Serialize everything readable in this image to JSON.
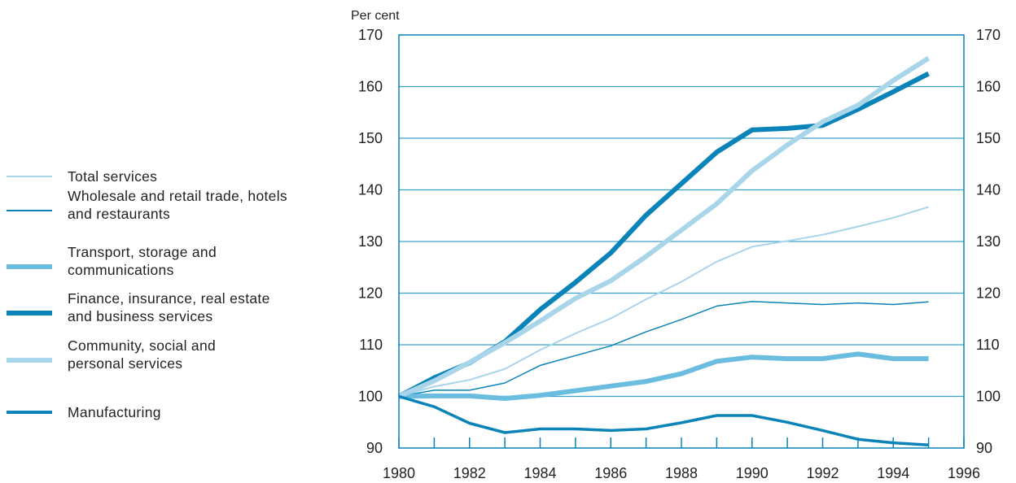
{
  "chart_data": {
    "type": "line",
    "ylabel": "Per cent",
    "xlim": [
      1980,
      1996
    ],
    "ylim": [
      90,
      170
    ],
    "xticks": [
      "1980",
      "1982",
      "1984",
      "1986",
      "1988",
      "1990",
      "1992",
      "1994",
      "1996"
    ],
    "yticks": [
      "90",
      "100",
      "110",
      "120",
      "130",
      "140",
      "150",
      "160",
      "170"
    ],
    "grid": true,
    "legend_position": "left",
    "x": [
      1980,
      1981,
      1982,
      1983,
      1984,
      1985,
      1986,
      1987,
      1988,
      1989,
      1990,
      1991,
      1992,
      1993,
      1994,
      1995
    ],
    "series": [
      {
        "name": "Total services",
        "color": "#a9d5ea",
        "width": 2,
        "values": [
          100,
          101.9,
          103.2,
          105.3,
          109,
          112.2,
          115.1,
          118.8,
          122.2,
          126.1,
          129,
          130.1,
          131.3,
          132.9,
          134.6,
          136.7
        ]
      },
      {
        "name": "Wholesale and retail trade, hotels and restaurants",
        "color": "#0a84b8",
        "width": 1.5,
        "values": [
          100,
          101.2,
          101.2,
          102.6,
          106,
          107.9,
          109.8,
          112.5,
          114.9,
          117.5,
          118.4,
          118.1,
          117.8,
          118.1,
          117.8,
          118.3
        ]
      },
      {
        "name": "Transport, storage and communications",
        "color": "#6bbde0",
        "width": 6,
        "values": [
          100,
          100.1,
          100.1,
          99.6,
          100.2,
          101.1,
          102,
          102.9,
          104.4,
          106.8,
          107.6,
          107.3,
          107.3,
          108.2,
          107.3,
          107.3
        ]
      },
      {
        "name": "Finance, insurance, real estate and business services",
        "color": "#0a84b8",
        "width": 6,
        "values": [
          100,
          103.6,
          106.5,
          110.6,
          116.8,
          122.1,
          127.8,
          135.1,
          141.2,
          147.3,
          151.6,
          151.9,
          152.5,
          155.6,
          159,
          162.5
        ]
      },
      {
        "name": "Community, social and personal services",
        "color": "#a9d5ea",
        "width": 6,
        "values": [
          100,
          103,
          106.6,
          110.4,
          114.6,
          119,
          122.4,
          127.1,
          132.2,
          137.3,
          143.7,
          148.7,
          153.2,
          156.4,
          161.2,
          165.5
        ]
      },
      {
        "name": "Manufacturing",
        "color": "#0a84b8",
        "width": 3.5,
        "values": [
          100,
          98,
          94.8,
          93,
          93.7,
          93.7,
          93.4,
          93.7,
          94.9,
          96.3,
          96.3,
          95,
          93.4,
          91.7,
          91,
          90.6
        ]
      }
    ]
  },
  "legend": {
    "items": [
      {
        "label": "Total services",
        "color": "#a9d5ea",
        "height": 2
      },
      {
        "label": "Wholesale and retail trade, hotels\nand restaurants",
        "color": "#0a84b8",
        "height": 1.5
      },
      {
        "label": "Transport, storage and\ncommunications",
        "color": "#6bbde0",
        "height": 6
      },
      {
        "label": "Finance, insurance, real estate\nand business services",
        "color": "#0a84b8",
        "height": 6
      },
      {
        "label": "Community, social and\npersonal services",
        "color": "#a9d5ea",
        "height": 6
      },
      {
        "label": "Manufacturing",
        "color": "#0a84b8",
        "height": 3.5
      }
    ]
  },
  "colors": {
    "grid": "#3aa0cc",
    "axis": "#0a84b8"
  }
}
